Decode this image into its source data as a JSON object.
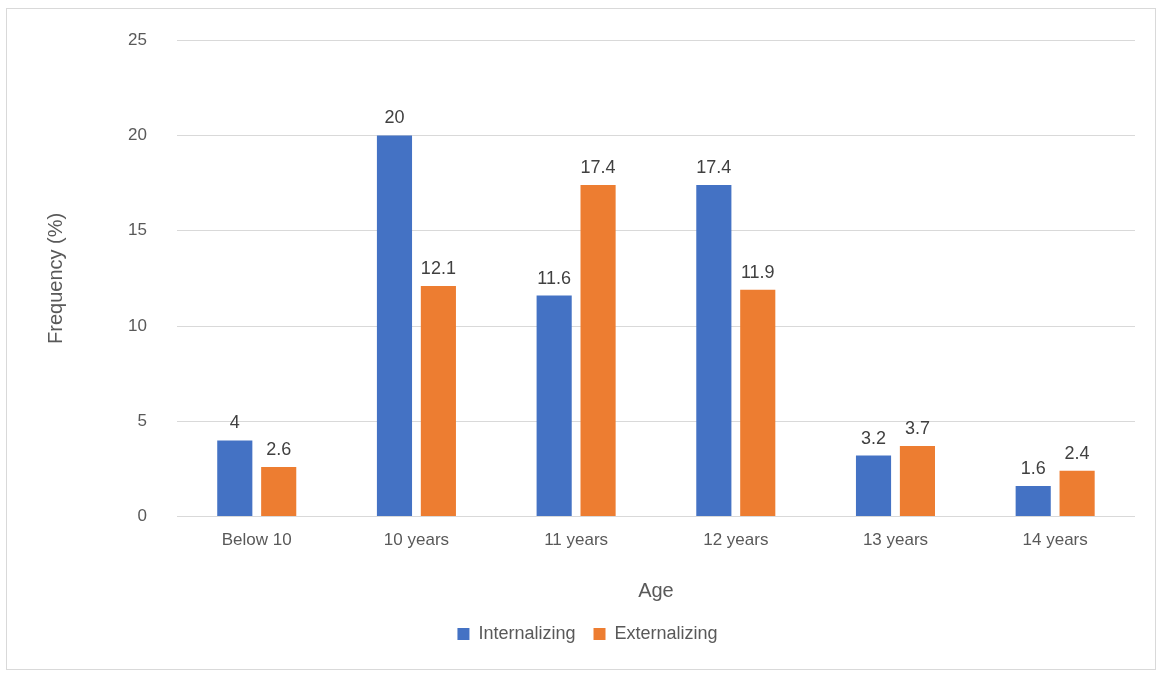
{
  "chart_data": {
    "type": "bar",
    "xlabel": "Age",
    "ylabel": "Frequency (%)",
    "categories": [
      "Below 10",
      "10 years",
      "11 years",
      "12 years",
      "13 years",
      "14 years"
    ],
    "series": [
      {
        "name": "Internalizing",
        "color": "#4472c4",
        "values": [
          4,
          20,
          11.6,
          17.4,
          3.2,
          1.6
        ]
      },
      {
        "name": "Externalizing",
        "color": "#ed7d31",
        "values": [
          2.6,
          12.1,
          17.4,
          11.9,
          3.7,
          2.4
        ]
      }
    ],
    "ylim": [
      0,
      25
    ],
    "yticks": [
      0,
      5,
      10,
      15,
      20,
      25
    ],
    "grid": "y",
    "legend": "bottom",
    "data_labels": true
  }
}
